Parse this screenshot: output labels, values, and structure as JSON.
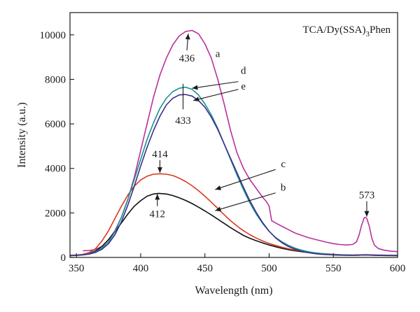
{
  "chart_data": {
    "type": "line",
    "title": "",
    "legend_label": {
      "prefix": "TCA/Dy(SSA)",
      "subscript": "3",
      "suffix": "Phen"
    },
    "xlabel": "Wavelength (nm)",
    "ylabel": "Intensity (a.u.)",
    "xlim": [
      345,
      600
    ],
    "ylim": [
      0,
      11000
    ],
    "x_ticks": [
      350,
      400,
      450,
      500,
      550,
      600
    ],
    "y_ticks": [
      0,
      2000,
      4000,
      6000,
      8000,
      10000
    ],
    "grid": false,
    "series": [
      {
        "name": "a",
        "color": "#b8329c",
        "points": [
          [
            355,
            300
          ],
          [
            360,
            310
          ],
          [
            365,
            360
          ],
          [
            370,
            500
          ],
          [
            375,
            800
          ],
          [
            380,
            1200
          ],
          [
            385,
            1800
          ],
          [
            390,
            2600
          ],
          [
            395,
            3600
          ],
          [
            400,
            4800
          ],
          [
            405,
            6000
          ],
          [
            410,
            7200
          ],
          [
            415,
            8200
          ],
          [
            420,
            8950
          ],
          [
            425,
            9550
          ],
          [
            430,
            9950
          ],
          [
            435,
            10150
          ],
          [
            440,
            10200
          ],
          [
            445,
            10050
          ],
          [
            450,
            9600
          ],
          [
            455,
            8950
          ],
          [
            460,
            8000
          ],
          [
            465,
            6900
          ],
          [
            470,
            5700
          ],
          [
            475,
            4700
          ],
          [
            480,
            4000
          ],
          [
            485,
            3500
          ],
          [
            490,
            3100
          ],
          [
            495,
            2700
          ],
          [
            498,
            2500
          ],
          [
            500,
            2300
          ],
          [
            502,
            1650
          ],
          [
            505,
            1550
          ],
          [
            510,
            1400
          ],
          [
            515,
            1250
          ],
          [
            520,
            1100
          ],
          [
            525,
            1000
          ],
          [
            530,
            900
          ],
          [
            535,
            820
          ],
          [
            540,
            750
          ],
          [
            545,
            680
          ],
          [
            550,
            620
          ],
          [
            555,
            580
          ],
          [
            560,
            560
          ],
          [
            565,
            580
          ],
          [
            568,
            700
          ],
          [
            570,
            1000
          ],
          [
            572,
            1450
          ],
          [
            574,
            1780
          ],
          [
            575,
            1800
          ],
          [
            576,
            1750
          ],
          [
            578,
            1400
          ],
          [
            580,
            850
          ],
          [
            582,
            550
          ],
          [
            585,
            400
          ],
          [
            590,
            320
          ],
          [
            595,
            280
          ],
          [
            600,
            260
          ]
        ]
      },
      {
        "name": "b",
        "color": "#111111",
        "points": [
          [
            345,
            80
          ],
          [
            350,
            100
          ],
          [
            355,
            130
          ],
          [
            360,
            180
          ],
          [
            365,
            300
          ],
          [
            370,
            500
          ],
          [
            375,
            800
          ],
          [
            380,
            1150
          ],
          [
            385,
            1550
          ],
          [
            390,
            1950
          ],
          [
            395,
            2300
          ],
          [
            400,
            2550
          ],
          [
            405,
            2750
          ],
          [
            410,
            2850
          ],
          [
            414,
            2880
          ],
          [
            420,
            2850
          ],
          [
            425,
            2780
          ],
          [
            430,
            2680
          ],
          [
            435,
            2560
          ],
          [
            440,
            2420
          ],
          [
            445,
            2260
          ],
          [
            450,
            2090
          ],
          [
            455,
            1910
          ],
          [
            460,
            1720
          ],
          [
            465,
            1530
          ],
          [
            470,
            1340
          ],
          [
            475,
            1160
          ],
          [
            480,
            990
          ],
          [
            485,
            860
          ],
          [
            490,
            750
          ],
          [
            495,
            650
          ],
          [
            500,
            560
          ],
          [
            505,
            480
          ],
          [
            510,
            410
          ],
          [
            515,
            350
          ],
          [
            520,
            300
          ],
          [
            525,
            260
          ],
          [
            530,
            220
          ],
          [
            535,
            190
          ],
          [
            540,
            160
          ],
          [
            545,
            140
          ],
          [
            550,
            120
          ],
          [
            555,
            110
          ],
          [
            560,
            100
          ],
          [
            565,
            95
          ],
          [
            570,
            100
          ],
          [
            575,
            110
          ],
          [
            580,
            100
          ],
          [
            590,
            85
          ],
          [
            600,
            80
          ]
        ]
      },
      {
        "name": "c",
        "color": "#d83a1e",
        "points": [
          [
            345,
            100
          ],
          [
            350,
            110
          ],
          [
            355,
            140
          ],
          [
            360,
            220
          ],
          [
            365,
            400
          ],
          [
            370,
            750
          ],
          [
            375,
            1200
          ],
          [
            380,
            1750
          ],
          [
            385,
            2300
          ],
          [
            390,
            2800
          ],
          [
            395,
            3200
          ],
          [
            400,
            3480
          ],
          [
            405,
            3650
          ],
          [
            410,
            3740
          ],
          [
            415,
            3760
          ],
          [
            420,
            3740
          ],
          [
            425,
            3680
          ],
          [
            430,
            3560
          ],
          [
            435,
            3410
          ],
          [
            440,
            3220
          ],
          [
            445,
            3000
          ],
          [
            450,
            2750
          ],
          [
            455,
            2480
          ],
          [
            460,
            2200
          ],
          [
            465,
            1920
          ],
          [
            470,
            1650
          ],
          [
            475,
            1410
          ],
          [
            480,
            1200
          ],
          [
            485,
            1020
          ],
          [
            490,
            870
          ],
          [
            495,
            740
          ],
          [
            500,
            630
          ],
          [
            505,
            540
          ],
          [
            510,
            460
          ],
          [
            515,
            390
          ],
          [
            520,
            330
          ],
          [
            525,
            285
          ],
          [
            530,
            245
          ],
          [
            535,
            210
          ],
          [
            540,
            180
          ],
          [
            545,
            160
          ],
          [
            550,
            140
          ],
          [
            555,
            125
          ],
          [
            560,
            115
          ],
          [
            565,
            110
          ],
          [
            570,
            115
          ],
          [
            575,
            125
          ],
          [
            580,
            115
          ],
          [
            590,
            100
          ],
          [
            600,
            95
          ]
        ]
      },
      {
        "name": "d",
        "color": "#1a9090",
        "points": [
          [
            345,
            80
          ],
          [
            350,
            100
          ],
          [
            355,
            120
          ],
          [
            360,
            170
          ],
          [
            365,
            260
          ],
          [
            370,
            420
          ],
          [
            375,
            700
          ],
          [
            380,
            1150
          ],
          [
            385,
            1800
          ],
          [
            390,
            2600
          ],
          [
            395,
            3500
          ],
          [
            400,
            4400
          ],
          [
            405,
            5300
          ],
          [
            410,
            6050
          ],
          [
            415,
            6700
          ],
          [
            420,
            7150
          ],
          [
            425,
            7450
          ],
          [
            430,
            7600
          ],
          [
            435,
            7650
          ],
          [
            440,
            7550
          ],
          [
            445,
            7300
          ],
          [
            450,
            6900
          ],
          [
            455,
            6400
          ],
          [
            460,
            5800
          ],
          [
            465,
            5100
          ],
          [
            470,
            4400
          ],
          [
            475,
            3700
          ],
          [
            480,
            3050
          ],
          [
            485,
            2450
          ],
          [
            490,
            1950
          ],
          [
            495,
            1520
          ],
          [
            500,
            1170
          ],
          [
            505,
            900
          ],
          [
            510,
            700
          ],
          [
            515,
            540
          ],
          [
            520,
            420
          ],
          [
            525,
            330
          ],
          [
            530,
            260
          ],
          [
            535,
            210
          ],
          [
            540,
            175
          ],
          [
            545,
            150
          ],
          [
            550,
            130
          ],
          [
            555,
            120
          ],
          [
            560,
            110
          ],
          [
            565,
            105
          ],
          [
            570,
            110
          ],
          [
            575,
            115
          ],
          [
            580,
            105
          ],
          [
            590,
            95
          ],
          [
            600,
            90
          ]
        ]
      },
      {
        "name": "e",
        "color": "#3a2f8c",
        "points": [
          [
            345,
            80
          ],
          [
            350,
            90
          ],
          [
            355,
            110
          ],
          [
            360,
            150
          ],
          [
            365,
            230
          ],
          [
            370,
            370
          ],
          [
            375,
            620
          ],
          [
            380,
            1020
          ],
          [
            385,
            1600
          ],
          [
            390,
            2350
          ],
          [
            395,
            3200
          ],
          [
            400,
            4100
          ],
          [
            405,
            4950
          ],
          [
            410,
            5700
          ],
          [
            415,
            6350
          ],
          [
            420,
            6850
          ],
          [
            425,
            7150
          ],
          [
            430,
            7300
          ],
          [
            435,
            7320
          ],
          [
            440,
            7250
          ],
          [
            445,
            7050
          ],
          [
            450,
            6750
          ],
          [
            455,
            6300
          ],
          [
            460,
            5750
          ],
          [
            465,
            5100
          ],
          [
            470,
            4450
          ],
          [
            475,
            3800
          ],
          [
            480,
            3150
          ],
          [
            485,
            2550
          ],
          [
            490,
            2020
          ],
          [
            495,
            1560
          ],
          [
            500,
            1180
          ],
          [
            505,
            880
          ],
          [
            510,
            660
          ],
          [
            515,
            490
          ],
          [
            520,
            370
          ],
          [
            525,
            280
          ],
          [
            530,
            220
          ],
          [
            535,
            175
          ],
          [
            540,
            145
          ],
          [
            545,
            125
          ],
          [
            550,
            110
          ],
          [
            555,
            100
          ],
          [
            560,
            95
          ],
          [
            565,
            95
          ],
          [
            570,
            105
          ],
          [
            575,
            110
          ],
          [
            580,
            100
          ],
          [
            590,
            90
          ],
          [
            600,
            85
          ]
        ]
      }
    ],
    "annotations": [
      {
        "text": "436",
        "name": "peak-436",
        "x": 436,
        "y": 8800,
        "arrow_to": [
          437,
          10050
        ]
      },
      {
        "text": "a",
        "name": "label-a",
        "x": 460,
        "y": 9000
      },
      {
        "text": "d",
        "name": "label-d",
        "x": 480,
        "y": 8250,
        "arrow_from": [
          476,
          7900
        ],
        "arrow_to": [
          440,
          7600
        ]
      },
      {
        "text": "e",
        "name": "label-e",
        "x": 480,
        "y": 7550,
        "arrow_from": [
          476,
          7550
        ],
        "arrow_to": [
          441,
          7050
        ]
      },
      {
        "text": "433",
        "name": "peak-433",
        "x": 433,
        "y": 6000,
        "marker_line": [
          433,
          6650,
          7800
        ]
      },
      {
        "text": "414",
        "name": "peak-414",
        "x": 415,
        "y": 4500,
        "arrow_to": [
          415,
          3800
        ]
      },
      {
        "text": "c",
        "name": "label-c",
        "x": 511,
        "y": 4050,
        "arrow_from": [
          505,
          3950
        ],
        "arrow_to": [
          458,
          3050
        ]
      },
      {
        "text": "412",
        "name": "peak-412",
        "x": 413,
        "y": 1800,
        "arrow_to": [
          413,
          2850
        ]
      },
      {
        "text": "b",
        "name": "label-b",
        "x": 511,
        "y": 3000,
        "arrow_from": [
          505,
          2900
        ],
        "arrow_to": [
          458,
          2100
        ]
      },
      {
        "text": "573",
        "name": "peak-573",
        "x": 576,
        "y": 2650,
        "arrow_to": [
          576,
          1830
        ]
      }
    ]
  }
}
